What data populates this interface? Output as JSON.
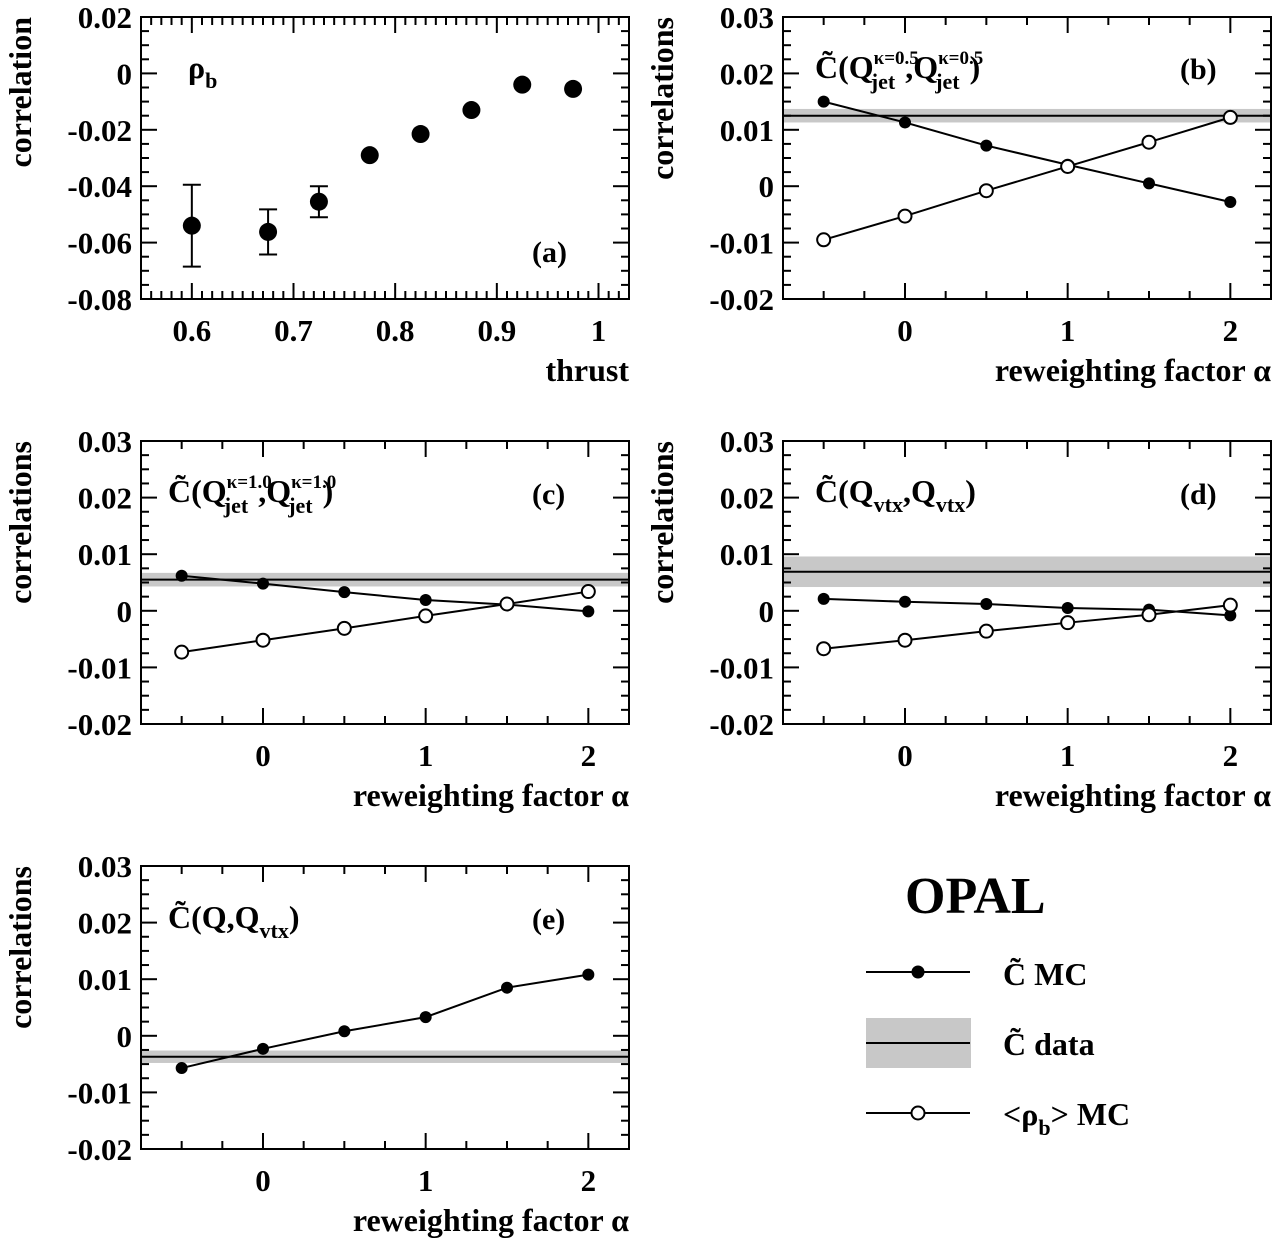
{
  "chart_data": [
    {
      "type": "scatter",
      "panel_label": "(a)",
      "annotation": {
        "base": "ρ",
        "sub": "b"
      },
      "xlabel": "thrust",
      "ylabel": "correlation",
      "xlim": [
        0.55,
        1.03
      ],
      "ylim": [
        -0.08,
        0.02
      ],
      "xticks": [
        0.6,
        0.7,
        0.8,
        0.9,
        1.0
      ],
      "xtick_labels": [
        "0.6",
        "0.7",
        "0.8",
        "0.9",
        "1"
      ],
      "yticks": [
        -0.08,
        -0.06,
        -0.04,
        -0.02,
        0,
        0.02
      ],
      "ytick_labels": [
        "-0.08",
        "-0.06",
        "-0.04",
        "-0.02",
        "0",
        "0.02"
      ],
      "series": [
        {
          "x": [
            0.6,
            0.675,
            0.725,
            0.775,
            0.825,
            0.875,
            0.925,
            0.975
          ],
          "y": [
            -0.054,
            -0.0562,
            -0.0455,
            -0.029,
            -0.0215,
            -0.013,
            -0.004,
            -0.0055
          ],
          "yerr": [
            0.0145,
            0.008,
            0.0055,
            0.0035,
            0.001,
            0.001,
            0.001,
            0.001
          ]
        }
      ]
    },
    {
      "type": "line",
      "panel_label": "(b)",
      "annotation": {
        "pre": "C̃(Q",
        "sub1": "jet",
        "sup1": "κ=0.5",
        "mid": ",Q",
        "sub2": "jet",
        "sup2": "κ=0.5",
        "post": ")"
      },
      "xlabel": "reweighting factor α",
      "ylabel": "correlations",
      "xlim": [
        -0.75,
        2.25
      ],
      "ylim": [
        -0.02,
        0.03
      ],
      "xticks": [
        0,
        1,
        2
      ],
      "xtick_labels": [
        "0",
        "1",
        "2"
      ],
      "yticks": [
        -0.02,
        -0.01,
        0,
        0.01,
        0.02,
        0.03
      ],
      "ytick_labels": [
        "-0.02",
        "-0.01",
        "0",
        "0.01",
        "0.02",
        "0.03"
      ],
      "data_band": {
        "value": 0.0125,
        "low": 0.0113,
        "high": 0.0137
      },
      "series": [
        {
          "marker": "filled",
          "x": [
            -0.5,
            0,
            0.5,
            1,
            1.5,
            2
          ],
          "y": [
            0.015,
            0.0113,
            0.0072,
            0.0038,
            0.0005,
            -0.0028
          ]
        },
        {
          "marker": "open",
          "x": [
            -0.5,
            0,
            0.5,
            1,
            1.5,
            2
          ],
          "y": [
            -0.0095,
            -0.0053,
            -0.0008,
            0.0035,
            0.0078,
            0.0122
          ]
        }
      ]
    },
    {
      "type": "line",
      "panel_label": "(c)",
      "annotation": {
        "pre": "C̃(Q",
        "sub1": "jet",
        "sup1": "κ=1.0",
        "mid": ",Q",
        "sub2": "jet",
        "sup2": "κ=1.0",
        "post": ")"
      },
      "xlabel": "reweighting factor α",
      "ylabel": "correlations",
      "xlim": [
        -0.75,
        2.25
      ],
      "ylim": [
        -0.02,
        0.03
      ],
      "xticks": [
        0,
        1,
        2
      ],
      "xtick_labels": [
        "0",
        "1",
        "2"
      ],
      "yticks": [
        -0.02,
        -0.01,
        0,
        0.01,
        0.02,
        0.03
      ],
      "ytick_labels": [
        "-0.02",
        "-0.01",
        "0",
        "0.01",
        "0.02",
        "0.03"
      ],
      "data_band": {
        "value": 0.0055,
        "low": 0.0043,
        "high": 0.0067
      },
      "series": [
        {
          "marker": "filled",
          "x": [
            -0.5,
            0,
            0.5,
            1,
            1.5,
            2
          ],
          "y": [
            0.0062,
            0.0048,
            0.0033,
            0.0019,
            0.0011,
            -0.0001
          ]
        },
        {
          "marker": "open",
          "x": [
            -0.5,
            0,
            0.5,
            1,
            1.5,
            2
          ],
          "y": [
            -0.0073,
            -0.0052,
            -0.0031,
            -0.0009,
            0.0012,
            0.0034
          ]
        }
      ]
    },
    {
      "type": "line",
      "panel_label": "(d)",
      "annotation": {
        "pre": "C̃(Q",
        "sub1": "vtx",
        "sup1": "",
        "mid": ",Q",
        "sub2": "vtx",
        "sup2": "",
        "post": ")"
      },
      "xlabel": "reweighting factor α",
      "ylabel": "correlations",
      "xlim": [
        -0.75,
        2.25
      ],
      "ylim": [
        -0.02,
        0.03
      ],
      "xticks": [
        0,
        1,
        2
      ],
      "xtick_labels": [
        "0",
        "1",
        "2"
      ],
      "yticks": [
        -0.02,
        -0.01,
        0,
        0.01,
        0.02,
        0.03
      ],
      "ytick_labels": [
        "-0.02",
        "-0.01",
        "0",
        "0.01",
        "0.02",
        "0.03"
      ],
      "data_band": {
        "value": 0.0069,
        "low": 0.0042,
        "high": 0.0096
      },
      "series": [
        {
          "marker": "filled",
          "x": [
            -0.5,
            0,
            0.5,
            1,
            1.5,
            2
          ],
          "y": [
            0.0021,
            0.0016,
            0.0012,
            0.0005,
            0.0002,
            -0.0008
          ]
        },
        {
          "marker": "open",
          "x": [
            -0.5,
            0,
            0.5,
            1,
            1.5,
            2
          ],
          "y": [
            -0.0067,
            -0.0052,
            -0.0036,
            -0.0021,
            -0.0007,
            0.001
          ]
        }
      ]
    },
    {
      "type": "line",
      "panel_label": "(e)",
      "annotation": {
        "pre": "C̃(Q,Q",
        "sub1": "vtx",
        "sup1": "",
        "mid": "",
        "sub2": "",
        "sup2": "",
        "post": ")"
      },
      "xlabel": "reweighting factor α",
      "ylabel": "correlations",
      "xlim": [
        -0.75,
        2.25
      ],
      "ylim": [
        -0.02,
        0.03
      ],
      "xticks": [
        0,
        1,
        2
      ],
      "xtick_labels": [
        "0",
        "1",
        "2"
      ],
      "yticks": [
        -0.02,
        -0.01,
        0,
        0.01,
        0.02,
        0.03
      ],
      "ytick_labels": [
        "-0.02",
        "-0.01",
        "0",
        "0.01",
        "0.02",
        "0.03"
      ],
      "data_band": {
        "value": -0.0037,
        "low": -0.0048,
        "high": -0.0026
      },
      "series": [
        {
          "marker": "filled",
          "x": [
            -0.5,
            0,
            0.5,
            1,
            1.5,
            2
          ],
          "y": [
            -0.0057,
            -0.0023,
            0.0008,
            0.0033,
            0.0085,
            0.0108
          ]
        }
      ]
    }
  ],
  "legend": {
    "title": "OPAL",
    "items": [
      {
        "kind": "filled-line",
        "label": "C̃ MC"
      },
      {
        "kind": "band",
        "label": "C̃ data"
      },
      {
        "kind": "open-line",
        "label_pre": "<ρ",
        "label_sub": "b",
        "label_post": "> MC"
      }
    ]
  },
  "colors": {
    "band": "#c8c8c8",
    "ink": "#000000"
  }
}
